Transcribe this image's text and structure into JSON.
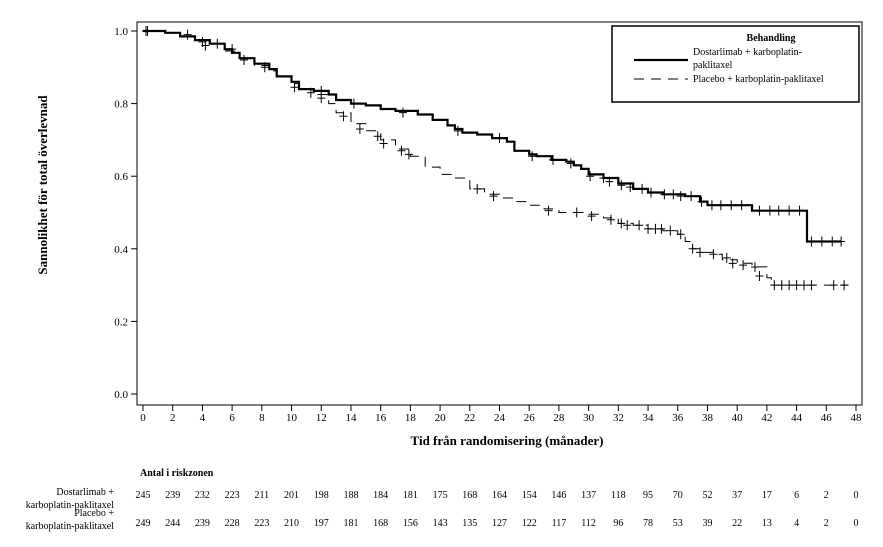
{
  "chart_data": {
    "type": "line",
    "subtype": "kaplan-meier",
    "xlabel": "Tid från randomisering  (månader)",
    "ylabel": "Sannolikhet för total överlevnad",
    "xlim": [
      0,
      48
    ],
    "ylim": [
      0,
      1.0
    ],
    "x_ticks": [
      "0",
      "2",
      "4",
      "6",
      "8",
      "10",
      "12",
      "14",
      "16",
      "18",
      "20",
      "22",
      "24",
      "26",
      "28",
      "30",
      "32",
      "34",
      "36",
      "38",
      "40",
      "42",
      "44",
      "46",
      "48"
    ],
    "y_ticks": [
      "0.0",
      "0.2",
      "0.4",
      "0.6",
      "0.8",
      "1.0"
    ],
    "legend": {
      "title": "Behandling",
      "position": "top-right",
      "entries": [
        {
          "line1": "Dostarlimab + karboplatin-",
          "line2": "paklitaxel",
          "style": "solid"
        },
        {
          "line1": "Placebo + karboplatin-paklitaxel",
          "line2": "",
          "style": "dashed"
        }
      ]
    },
    "series": [
      {
        "name": "Dostarlimab + karboplatin-paklitaxel",
        "style": "solid",
        "points": [
          [
            0,
            1.0
          ],
          [
            1.5,
            0.995
          ],
          [
            2.5,
            0.985
          ],
          [
            3.5,
            0.975
          ],
          [
            4.5,
            0.965
          ],
          [
            5.5,
            0.95
          ],
          [
            6,
            0.94
          ],
          [
            6.5,
            0.925
          ],
          [
            7.5,
            0.91
          ],
          [
            8.5,
            0.895
          ],
          [
            9,
            0.875
          ],
          [
            10,
            0.86
          ],
          [
            10.5,
            0.84
          ],
          [
            11.5,
            0.835
          ],
          [
            12.5,
            0.825
          ],
          [
            13,
            0.81
          ],
          [
            14,
            0.8
          ],
          [
            15,
            0.795
          ],
          [
            16,
            0.785
          ],
          [
            17,
            0.78
          ],
          [
            18.5,
            0.77
          ],
          [
            19.5,
            0.755
          ],
          [
            20.5,
            0.74
          ],
          [
            21,
            0.73
          ],
          [
            21.5,
            0.72
          ],
          [
            22.5,
            0.715
          ],
          [
            23.5,
            0.705
          ],
          [
            24.5,
            0.695
          ],
          [
            25,
            0.67
          ],
          [
            26,
            0.66
          ],
          [
            26.5,
            0.655
          ],
          [
            27.5,
            0.645
          ],
          [
            28.5,
            0.64
          ],
          [
            29,
            0.63
          ],
          [
            29.5,
            0.62
          ],
          [
            30,
            0.605
          ],
          [
            31,
            0.595
          ],
          [
            32,
            0.58
          ],
          [
            33,
            0.565
          ],
          [
            34,
            0.555
          ],
          [
            35,
            0.55
          ],
          [
            36.5,
            0.545
          ],
          [
            37.5,
            0.53
          ],
          [
            38,
            0.52
          ],
          [
            39,
            0.52
          ],
          [
            41,
            0.505
          ],
          [
            44.7,
            0.505
          ],
          [
            44.7,
            0.42
          ],
          [
            47,
            0.42
          ]
        ],
        "censor": [
          [
            0.2,
            1.0
          ],
          [
            3,
            0.99
          ],
          [
            4.2,
            0.96
          ],
          [
            5,
            0.965
          ],
          [
            6.8,
            0.92
          ],
          [
            8.2,
            0.9
          ],
          [
            10.2,
            0.845
          ],
          [
            12,
            0.835
          ],
          [
            14.2,
            0.8
          ],
          [
            17.5,
            0.775
          ],
          [
            21.2,
            0.725
          ],
          [
            24,
            0.705
          ],
          [
            26.2,
            0.655
          ],
          [
            27.6,
            0.645
          ],
          [
            28.8,
            0.635
          ],
          [
            30.1,
            0.6
          ],
          [
            31,
            0.595
          ],
          [
            31.4,
            0.585
          ],
          [
            32.2,
            0.575
          ],
          [
            32.8,
            0.57
          ],
          [
            33.6,
            0.565
          ],
          [
            34.2,
            0.555
          ],
          [
            35.1,
            0.55
          ],
          [
            35.7,
            0.55
          ],
          [
            36.2,
            0.545
          ],
          [
            36.9,
            0.545
          ],
          [
            37.6,
            0.53
          ],
          [
            38.3,
            0.52
          ],
          [
            38.9,
            0.52
          ],
          [
            39.6,
            0.52
          ],
          [
            40.3,
            0.52
          ],
          [
            41.5,
            0.505
          ],
          [
            42.2,
            0.505
          ],
          [
            42.8,
            0.505
          ],
          [
            43.5,
            0.505
          ],
          [
            44.2,
            0.505
          ],
          [
            45,
            0.42
          ],
          [
            45.7,
            0.42
          ],
          [
            46.4,
            0.42
          ],
          [
            47,
            0.42
          ]
        ]
      },
      {
        "name": "Placebo + karboplatin-paklitaxel",
        "style": "dashed",
        "points": [
          [
            0,
            1.0
          ],
          [
            1.5,
            0.995
          ],
          [
            2.5,
            0.985
          ],
          [
            3.5,
            0.975
          ],
          [
            4.5,
            0.965
          ],
          [
            5.5,
            0.945
          ],
          [
            6.5,
            0.925
          ],
          [
            7.5,
            0.905
          ],
          [
            8.5,
            0.89
          ],
          [
            9,
            0.875
          ],
          [
            10,
            0.855
          ],
          [
            10.5,
            0.84
          ],
          [
            11.5,
            0.825
          ],
          [
            12.5,
            0.8
          ],
          [
            13,
            0.775
          ],
          [
            14,
            0.745
          ],
          [
            15,
            0.725
          ],
          [
            16,
            0.7
          ],
          [
            17,
            0.675
          ],
          [
            18,
            0.655
          ],
          [
            19,
            0.625
          ],
          [
            20,
            0.605
          ],
          [
            21,
            0.595
          ],
          [
            22,
            0.565
          ],
          [
            23,
            0.55
          ],
          [
            24,
            0.54
          ],
          [
            25,
            0.53
          ],
          [
            26,
            0.52
          ],
          [
            27,
            0.51
          ],
          [
            28,
            0.5
          ],
          [
            30,
            0.495
          ],
          [
            31,
            0.485
          ],
          [
            32,
            0.47
          ],
          [
            33,
            0.465
          ],
          [
            34,
            0.455
          ],
          [
            35,
            0.45
          ],
          [
            36,
            0.44
          ],
          [
            36.5,
            0.42
          ],
          [
            37,
            0.4
          ],
          [
            37.5,
            0.39
          ],
          [
            38.5,
            0.385
          ],
          [
            39,
            0.37
          ],
          [
            40,
            0.36
          ],
          [
            41,
            0.35
          ],
          [
            42,
            0.32
          ],
          [
            42.3,
            0.3
          ],
          [
            47.5,
            0.3
          ]
        ],
        "censor": [
          [
            0.3,
            1.0
          ],
          [
            4,
            0.97
          ],
          [
            6,
            0.95
          ],
          [
            11.3,
            0.83
          ],
          [
            12,
            0.815
          ],
          [
            13.5,
            0.765
          ],
          [
            14.6,
            0.73
          ],
          [
            15.8,
            0.71
          ],
          [
            16.2,
            0.69
          ],
          [
            17.4,
            0.67
          ],
          [
            17.9,
            0.66
          ],
          [
            22.5,
            0.565
          ],
          [
            23.6,
            0.545
          ],
          [
            27.3,
            0.505
          ],
          [
            29.2,
            0.5
          ],
          [
            30.2,
            0.49
          ],
          [
            31.5,
            0.48
          ],
          [
            32.2,
            0.47
          ],
          [
            32.6,
            0.465
          ],
          [
            33.4,
            0.465
          ],
          [
            34,
            0.455
          ],
          [
            34.5,
            0.455
          ],
          [
            34.9,
            0.455
          ],
          [
            35.5,
            0.45
          ],
          [
            36.2,
            0.44
          ],
          [
            37,
            0.4
          ],
          [
            37.5,
            0.39
          ],
          [
            38.4,
            0.385
          ],
          [
            39.3,
            0.375
          ],
          [
            39.7,
            0.36
          ],
          [
            40.4,
            0.355
          ],
          [
            41.2,
            0.35
          ],
          [
            41.5,
            0.325
          ],
          [
            42.5,
            0.3
          ],
          [
            43,
            0.3
          ],
          [
            43.5,
            0.3
          ],
          [
            44,
            0.3
          ],
          [
            44.5,
            0.3
          ],
          [
            45,
            0.3
          ],
          [
            46.5,
            0.3
          ],
          [
            47.2,
            0.3
          ]
        ]
      }
    ],
    "risk_table": {
      "title": "Antal i riskzonen",
      "rows": [
        {
          "label_line1": "Dostarlimab +",
          "label_line2": "karboplatin-paklitaxel",
          "values": [
            "245",
            "239",
            "232",
            "223",
            "211",
            "201",
            "198",
            "188",
            "184",
            "181",
            "175",
            "168",
            "164",
            "154",
            "146",
            "137",
            "118",
            "95",
            "70",
            "52",
            "37",
            "17",
            "6",
            "2",
            "0"
          ]
        },
        {
          "label_line1": "Placebo +",
          "label_line2": "karboplatin-paklitaxel",
          "values": [
            "249",
            "244",
            "239",
            "228",
            "223",
            "210",
            "197",
            "181",
            "168",
            "156",
            "143",
            "135",
            "127",
            "122",
            "117",
            "112",
            "96",
            "78",
            "53",
            "39",
            "22",
            "13",
            "4",
            "2",
            "0"
          ]
        }
      ]
    }
  }
}
